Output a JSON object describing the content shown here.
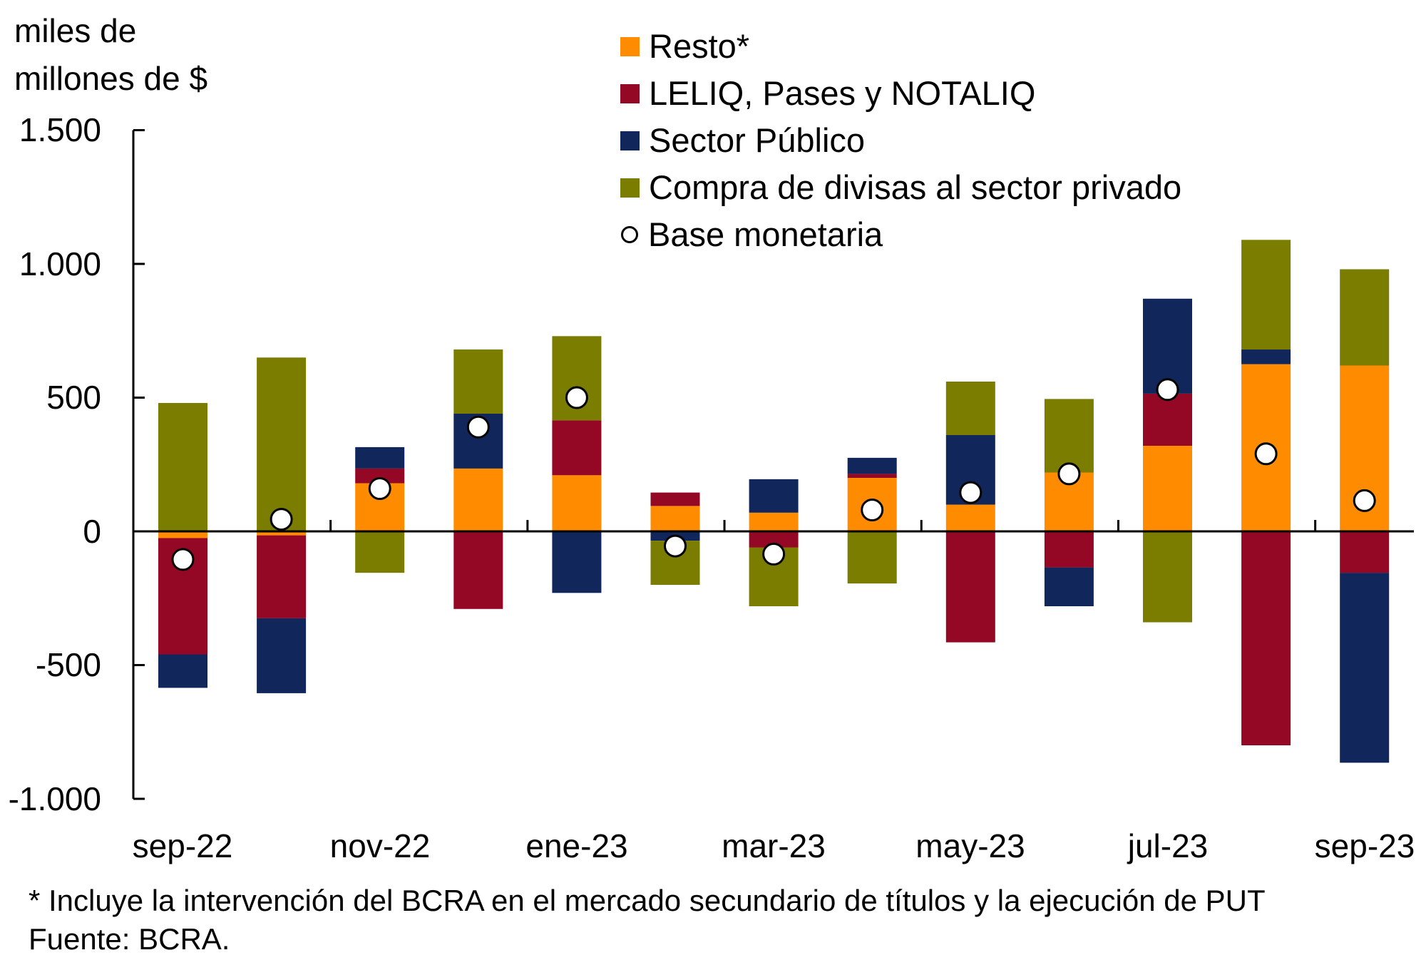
{
  "title": {
    "line1": "miles de",
    "line2": "millones de $"
  },
  "legend": [
    {
      "label": "Resto*",
      "marker": "square",
      "color": "#FF8C00"
    },
    {
      "label": "LELIQ, Pases y NOTALIQ",
      "marker": "square",
      "color": "#940725"
    },
    {
      "label": "Sector Público",
      "marker": "square",
      "color": "#11265B"
    },
    {
      "label": "Compra de divisas al sector privado",
      "marker": "square",
      "color": "#7B7D00"
    },
    {
      "label": "Base monetaria",
      "marker": "circle",
      "color": "#FFFFFF"
    }
  ],
  "footnote": {
    "line1": "* Incluye la intervención del BCRA en el mercado secundario de títulos y la ejecución de PUT",
    "line2": "Fuente: BCRA."
  },
  "chart_data": {
    "type": "bar",
    "stacked": true,
    "title": "",
    "xlabel": "",
    "ylabel": "miles de millones de $",
    "grid": false,
    "legend_position": "top-center",
    "categories": [
      "sep-22",
      "oct-22",
      "nov-22",
      "dic-22",
      "ene-23",
      "feb-23",
      "mar-23",
      "abr-23",
      "may-23",
      "jun-23",
      "jul-23",
      "ago-23",
      "sep-23"
    ],
    "x_tick_labels": [
      "sep-22",
      "nov-22",
      "ene-23",
      "mar-23",
      "may-23",
      "jul-23",
      "sep-23"
    ],
    "y_axis": {
      "min": -1000,
      "max": 1500,
      "step": 500,
      "tick_labels": [
        "1.500",
        "1.000",
        "500",
        "0",
        "-500",
        "-1.000"
      ],
      "tick_values": [
        1500,
        1000,
        500,
        0,
        -500,
        -1000
      ]
    },
    "series": [
      {
        "name": "Resto*",
        "color": "#FF8C00",
        "values": [
          -25,
          -15,
          180,
          235,
          210,
          95,
          70,
          200,
          100,
          220,
          320,
          625,
          620
        ]
      },
      {
        "name": "LELIQ, Pases y NOTALIQ",
        "color": "#940725",
        "values": [
          -435,
          -310,
          55,
          -290,
          205,
          50,
          -60,
          15,
          -415,
          -135,
          195,
          -800,
          -155
        ]
      },
      {
        "name": "Sector Público",
        "color": "#11265B",
        "values": [
          -125,
          -280,
          80,
          205,
          -230,
          -35,
          125,
          60,
          260,
          -145,
          355,
          55,
          -710
        ]
      },
      {
        "name": "Compra de divisas al sector privado",
        "color": "#7B7D00",
        "values": [
          480,
          650,
          -155,
          240,
          315,
          -165,
          -220,
          -195,
          200,
          275,
          -340,
          410,
          360
        ]
      }
    ],
    "scatter_series": {
      "name": "Base monetaria",
      "marker": "open-circle",
      "values": [
        -105,
        45,
        160,
        390,
        500,
        -55,
        -85,
        80,
        145,
        215,
        530,
        290,
        115
      ]
    }
  }
}
